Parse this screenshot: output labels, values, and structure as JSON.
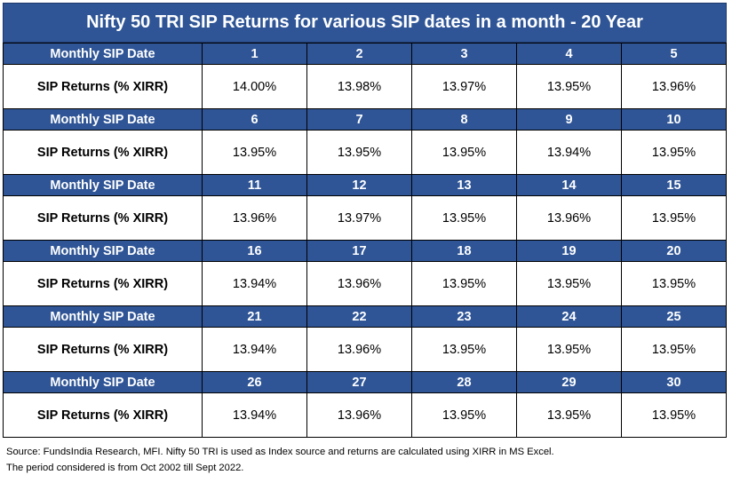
{
  "title": "Nifty 50 TRI SIP Returns for various SIP dates in a month - 20 Year",
  "row_header_label": "Monthly SIP Date",
  "row_value_label": "SIP Returns (% XIRR)",
  "blocks": [
    {
      "dates": [
        "1",
        "2",
        "3",
        "4",
        "5"
      ],
      "returns": [
        "14.00%",
        "13.98%",
        "13.97%",
        "13.95%",
        "13.96%"
      ]
    },
    {
      "dates": [
        "6",
        "7",
        "8",
        "9",
        "10"
      ],
      "returns": [
        "13.95%",
        "13.95%",
        "13.95%",
        "13.94%",
        "13.95%"
      ]
    },
    {
      "dates": [
        "11",
        "12",
        "13",
        "14",
        "15"
      ],
      "returns": [
        "13.96%",
        "13.97%",
        "13.95%",
        "13.96%",
        "13.95%"
      ]
    },
    {
      "dates": [
        "16",
        "17",
        "18",
        "19",
        "20"
      ],
      "returns": [
        "13.94%",
        "13.96%",
        "13.95%",
        "13.95%",
        "13.95%"
      ]
    },
    {
      "dates": [
        "21",
        "22",
        "23",
        "24",
        "25"
      ],
      "returns": [
        "13.94%",
        "13.96%",
        "13.95%",
        "13.95%",
        "13.95%"
      ]
    },
    {
      "dates": [
        "26",
        "27",
        "28",
        "29",
        "30"
      ],
      "returns": [
        "13.94%",
        "13.96%",
        "13.95%",
        "13.95%",
        "13.95%"
      ]
    }
  ],
  "footer": {
    "line1": "Source: FundsIndia Research, MFI. Nifty 50 TRI is used as Index source and returns are calculated using XIRR in MS Excel.",
    "line2": "The period considered is from Oct 2002 till Sept 2022."
  },
  "colors": {
    "header_bg": "#2f5596",
    "header_text": "#ffffff",
    "border": "#000000"
  }
}
